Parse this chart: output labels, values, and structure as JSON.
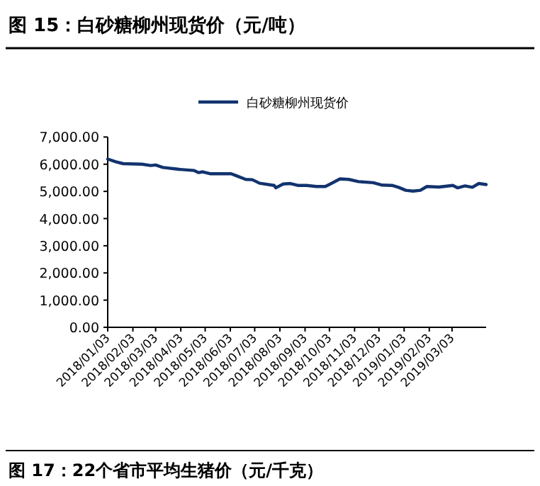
{
  "chart_data": {
    "type": "line",
    "title": "图 15：白砂糖柳州现货价（元/吨）",
    "x": [
      "2018-01-03",
      "2018-01-13",
      "2018-01-22",
      "2018-02-14",
      "2018-02-25",
      "2018-03-03",
      "2018-03-12",
      "2018-04-01",
      "2018-04-19",
      "2018-04-25",
      "2018-04-30",
      "2018-05-09",
      "2018-06-04",
      "2018-06-10",
      "2018-06-22",
      "2018-06-30",
      "2018-07-09",
      "2018-07-27",
      "2018-07-29",
      "2018-08-07",
      "2018-08-16",
      "2018-08-25",
      "2018-09-05",
      "2018-09-17",
      "2018-09-28",
      "2018-10-04",
      "2018-10-16",
      "2018-10-27",
      "2018-11-08",
      "2018-11-26",
      "2018-12-07",
      "2018-12-19",
      "2018-12-27",
      "2019-01-05",
      "2019-01-14",
      "2019-01-23",
      "2019-01-31",
      "2019-02-15",
      "2019-03-04",
      "2019-03-10",
      "2019-03-19",
      "2019-03-28",
      "2019-04-05",
      "2019-04-14"
    ],
    "series": [
      {
        "name": "白砂糖柳州现货价",
        "color": "#12336e",
        "values": [
          6190,
          6090,
          6020,
          6000,
          5950,
          5970,
          5880,
          5810,
          5770,
          5690,
          5720,
          5650,
          5650,
          5580,
          5440,
          5430,
          5300,
          5220,
          5130,
          5270,
          5290,
          5220,
          5220,
          5180,
          5180,
          5270,
          5460,
          5440,
          5360,
          5320,
          5230,
          5220,
          5150,
          5040,
          5010,
          5040,
          5180,
          5160,
          5220,
          5130,
          5200,
          5150,
          5290,
          5250
        ]
      }
    ],
    "xlim": [
      "2018-01-03",
      "2019-04-14"
    ],
    "xticks": [
      {
        "value": "2018-01-03",
        "label": "2018/01/03"
      },
      {
        "value": "2018-02-03",
        "label": "2018/02/03"
      },
      {
        "value": "2018-03-03",
        "label": "2018/03/03"
      },
      {
        "value": "2018-04-03",
        "label": "2018/04/03"
      },
      {
        "value": "2018-05-03",
        "label": "2018/05/03"
      },
      {
        "value": "2018-06-03",
        "label": "2018/06/03"
      },
      {
        "value": "2018-07-03",
        "label": "2018/07/03"
      },
      {
        "value": "2018-08-03",
        "label": "2018/08/03"
      },
      {
        "value": "2018-09-03",
        "label": "2018/09/03"
      },
      {
        "value": "2018-10-03",
        "label": "2018/10/03"
      },
      {
        "value": "2018-11-03",
        "label": "2018/11/03"
      },
      {
        "value": "2018-12-03",
        "label": "2018/12/03"
      },
      {
        "value": "2019-01-03",
        "label": "2019/01/03"
      },
      {
        "value": "2019-02-03",
        "label": "2019/02/03"
      },
      {
        "value": "2019-03-03",
        "label": "2019/03/03"
      }
    ],
    "ylim": [
      0,
      7000
    ],
    "yticks": [
      {
        "value": 0,
        "label": "0.00"
      },
      {
        "value": 1000,
        "label": "1,000.00"
      },
      {
        "value": 2000,
        "label": "2,000.00"
      },
      {
        "value": 3000,
        "label": "3,000.00"
      },
      {
        "value": 4000,
        "label": "4,000.00"
      },
      {
        "value": 5000,
        "label": "5,000.00"
      },
      {
        "value": 6000,
        "label": "6,000.00"
      },
      {
        "value": 7000,
        "label": "7,000.00"
      }
    ],
    "legend": "top",
    "grid": false,
    "marker": "none",
    "line_style": "solid",
    "annotations": [
      "图 17：22个省市平均生猪价（元/千克）"
    ]
  }
}
